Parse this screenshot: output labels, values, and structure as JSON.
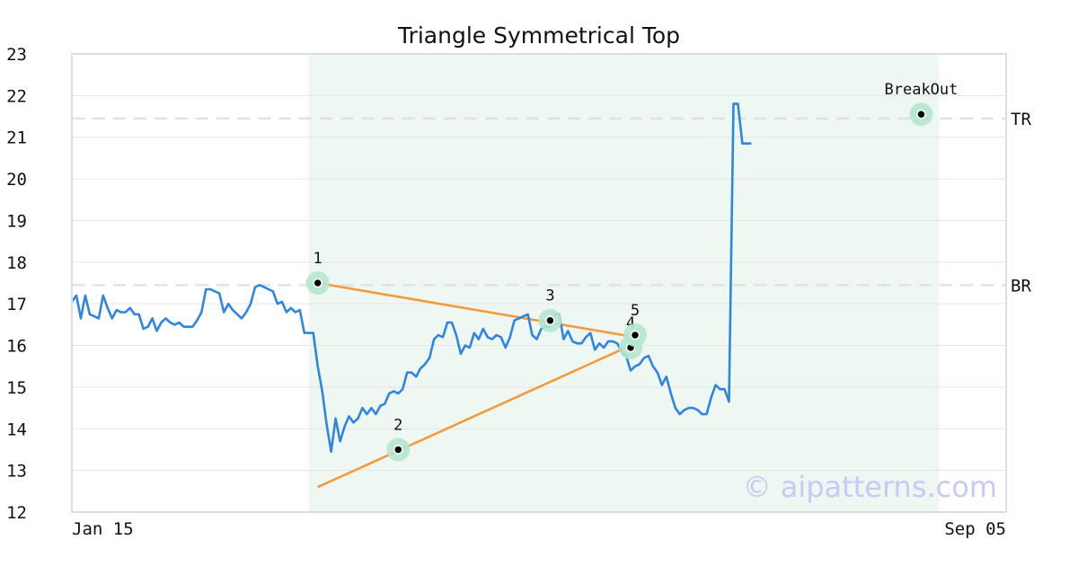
{
  "chart_data": {
    "type": "line",
    "title": "Triangle Symmetrical Top",
    "watermark": "© aipatterns.com",
    "xlabel": "",
    "ylabel": "",
    "x_tick_labels": [
      {
        "x": 0,
        "label": "Jan 15"
      },
      {
        "x": 208,
        "label": "Sep 05"
      }
    ],
    "xlim": [
      0,
      209
    ],
    "ylim": [
      12,
      23
    ],
    "y_ticks": [
      12,
      13,
      14,
      15,
      16,
      17,
      18,
      19,
      20,
      21,
      22,
      23
    ],
    "grid": "horizontal",
    "pattern_region": [
      53,
      194
    ],
    "series": [
      {
        "color": "#2f86de",
        "values": [
          17.05,
          17.2,
          16.65,
          17.2,
          16.75,
          16.7,
          16.65,
          17.2,
          16.9,
          16.65,
          16.85,
          16.8,
          16.8,
          16.9,
          16.75,
          16.75,
          16.4,
          16.45,
          16.65,
          16.35,
          16.55,
          16.65,
          16.55,
          16.5,
          16.55,
          16.45,
          16.45,
          16.45,
          16.6,
          16.8,
          17.35,
          17.35,
          17.3,
          17.25,
          16.8,
          17.0,
          16.85,
          16.75,
          16.65,
          16.8,
          17.0,
          17.4,
          17.45,
          17.4,
          17.35,
          17.3,
          17.0,
          17.05,
          16.8,
          16.9,
          16.8,
          16.85,
          16.3,
          16.3,
          16.3,
          15.5,
          14.9,
          14.1,
          13.45,
          14.25,
          13.7,
          14.05,
          14.3,
          14.15,
          14.25,
          14.5,
          14.35,
          14.5,
          14.35,
          14.55,
          14.6,
          14.85,
          14.9,
          14.85,
          14.95,
          15.35,
          15.35,
          15.25,
          15.45,
          15.55,
          15.7,
          16.15,
          16.25,
          16.2,
          16.55,
          16.55,
          16.25,
          15.8,
          16.0,
          15.95,
          16.3,
          16.15,
          16.4,
          16.2,
          16.15,
          16.25,
          16.2,
          15.95,
          16.2,
          16.6,
          16.65,
          16.7,
          16.75,
          16.25,
          16.15,
          16.4,
          16.45,
          16.45,
          16.75,
          16.75,
          16.15,
          16.35,
          16.1,
          16.05,
          16.05,
          16.2,
          16.3,
          15.9,
          16.05,
          15.95,
          16.1,
          16.1,
          16.05,
          15.85,
          15.75,
          15.4,
          15.5,
          15.55,
          15.7,
          15.75,
          15.5,
          15.35,
          15.05,
          15.25,
          14.85,
          14.5,
          14.35,
          14.45,
          14.5,
          14.5,
          14.45,
          14.35,
          14.35,
          14.75,
          15.05,
          14.95,
          14.95,
          14.65,
          21.8,
          21.8,
          20.85,
          20.85,
          20.85
        ]
      }
    ],
    "levels": [
      {
        "name": "TR",
        "y": 21.45
      },
      {
        "name": "BR",
        "y": 17.45
      }
    ],
    "pattern_points": [
      {
        "label": "1",
        "x": 55,
        "y": 17.5
      },
      {
        "label": "2",
        "x": 73,
        "y": 13.5
      },
      {
        "label": "3",
        "x": 107,
        "y": 16.6
      },
      {
        "label": "4",
        "x": 125,
        "y": 15.95
      },
      {
        "label": "5",
        "x": 126,
        "y": 16.25
      },
      {
        "label": "BreakOut",
        "x": 190,
        "y": 21.55
      }
    ],
    "trend_lines": [
      {
        "color": "#f59a3c",
        "from": {
          "x": 55,
          "y": 17.5
        },
        "to": {
          "x": 126,
          "y": 16.2
        }
      },
      {
        "color": "#f59a3c",
        "from": {
          "x": 55,
          "y": 12.6
        },
        "to": {
          "x": 125,
          "y": 16.0
        }
      }
    ],
    "colors": {
      "line": "#2f86de",
      "trend": "#f59a3c",
      "region": "#eef7f2",
      "marker_halo": "#b5e6cf",
      "level": "#e2e2e2",
      "grid": "#e6e6e6",
      "frame": "#dddddd"
    }
  }
}
